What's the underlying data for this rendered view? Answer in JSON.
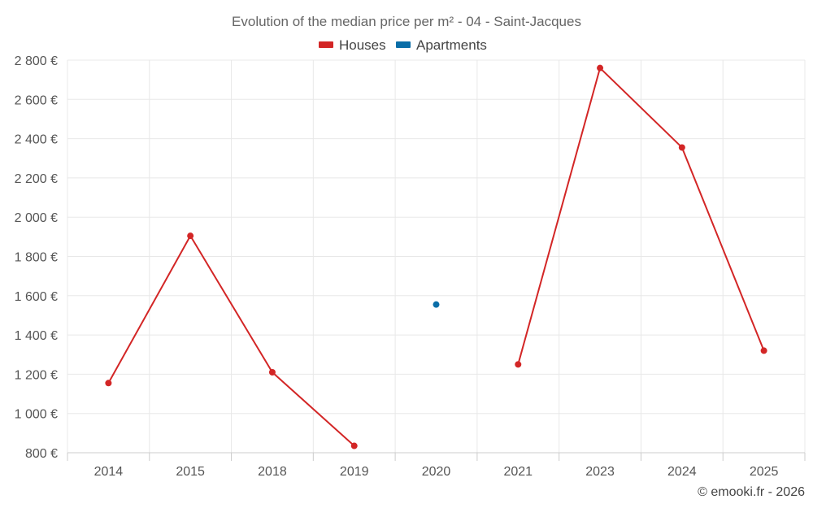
{
  "chart_data": {
    "type": "line",
    "title": "Evolution of the median price per m² - 04 - Saint-Jacques",
    "categories": [
      "2014",
      "2015",
      "2018",
      "2019",
      "2020",
      "2021",
      "2023",
      "2024",
      "2025"
    ],
    "series": [
      {
        "name": "Houses",
        "color": "#d32626",
        "values": [
          1155,
          1905,
          1210,
          835,
          null,
          1250,
          2760,
          2355,
          1320
        ]
      },
      {
        "name": "Apartments",
        "color": "#0b6ea8",
        "values": [
          null,
          null,
          null,
          null,
          1555,
          null,
          null,
          null,
          null
        ]
      }
    ],
    "ylim": [
      800,
      2800
    ],
    "yticks": [
      800,
      1000,
      1200,
      1400,
      1600,
      1800,
      2000,
      2200,
      2400,
      2600,
      2800
    ],
    "ytick_labels": [
      "800 €",
      "1 000 €",
      "1 200 €",
      "1 400 €",
      "1 600 €",
      "1 800 €",
      "2 000 €",
      "2 200 €",
      "2 400 €",
      "2 600 €",
      "2 800 €"
    ],
    "xlabel": "",
    "ylabel": "",
    "grid": true,
    "legend_position": "top-center"
  },
  "credit": "© emooki.fr - 2026"
}
